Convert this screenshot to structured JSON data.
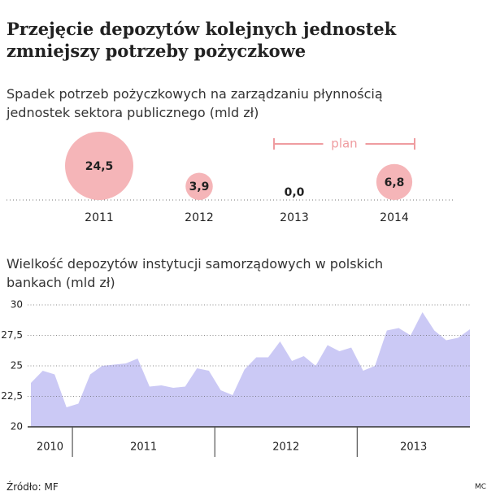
{
  "title": "Przejęcie depozytów kolejnych jednostek zmniejszy potrzeby pożyczkowe",
  "source": "Źródło: MF",
  "credit": "MC",
  "chart_data": [
    {
      "type": "bubble",
      "title": "Spadek potrzeb pożyczkowych na zarządzaniu płynnością jednostek sektora publicznego (mld zł)",
      "categories": [
        "2011",
        "2012",
        "2013",
        "2014"
      ],
      "values": [
        24.5,
        3.9,
        0.0,
        6.8
      ],
      "value_labels": [
        "24,5",
        "3,9",
        "0,0",
        "6,8"
      ],
      "color": "#f5b5b8",
      "annotation": {
        "text": "plan",
        "categories": [
          "2013",
          "2014"
        ],
        "color": "#ef9ca0"
      }
    },
    {
      "type": "area",
      "title": "Wielkość depozytów instytucji samorządowych w polskich bankach (mld zł)",
      "categories": [
        "2010",
        "2010",
        "2010",
        "2010",
        "2011",
        "2011",
        "2011",
        "2011",
        "2011",
        "2011",
        "2011",
        "2011",
        "2011",
        "2011",
        "2011",
        "2011",
        "2012",
        "2012",
        "2012",
        "2012",
        "2012",
        "2012",
        "2012",
        "2012",
        "2012",
        "2012",
        "2012",
        "2012",
        "2013",
        "2013",
        "2013",
        "2013",
        "2013",
        "2013",
        "2013",
        "2013",
        "2013",
        "2013"
      ],
      "values": [
        23.6,
        24.6,
        24.3,
        21.6,
        21.9,
        24.3,
        25.0,
        25.1,
        25.2,
        25.6,
        23.3,
        23.4,
        23.2,
        23.3,
        24.8,
        24.6,
        23.0,
        22.6,
        24.7,
        25.7,
        25.7,
        27.0,
        25.4,
        25.8,
        25.0,
        26.7,
        26.2,
        26.5,
        24.6,
        25.0,
        27.9,
        28.1,
        27.5,
        29.4,
        27.9,
        27.1,
        27.3,
        28.0
      ],
      "color": "#cbc9f5",
      "ylim": [
        20,
        30
      ],
      "yticks": [
        20,
        {
          "value": 22.5,
          "label": "22,5"
        },
        25,
        {
          "value": 27.5,
          "label": "27,5"
        },
        30
      ],
      "grid": true
    }
  ]
}
